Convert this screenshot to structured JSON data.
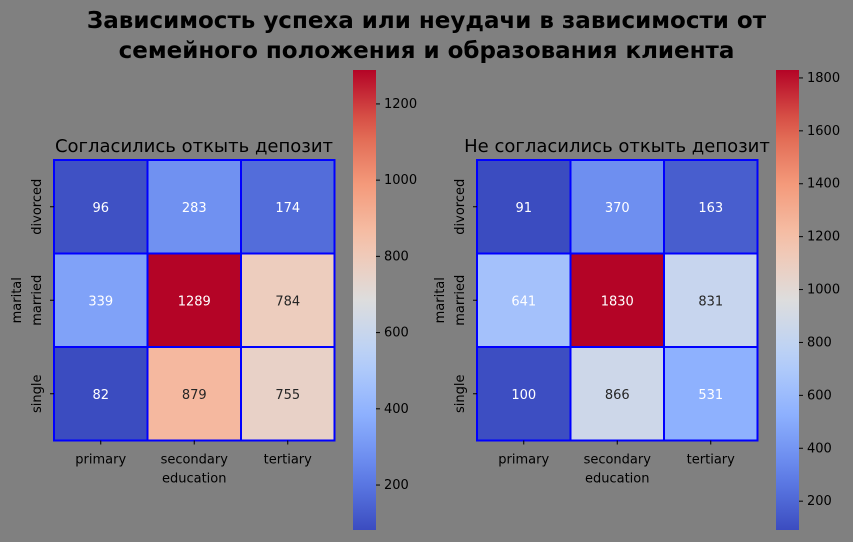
{
  "figure": {
    "suptitle_line1": "Зависимость успеха или неудачи в зависимости от",
    "suptitle_line2": "семейного положения и образования клиента"
  },
  "colors": {
    "background": "#808080",
    "cell_border": "#0000ff",
    "colormap": "coolwarm"
  },
  "chart_data": [
    {
      "type": "heatmap",
      "title": "Согласились откыть депозит",
      "xlabel": "education",
      "ylabel": "marital",
      "x_categories": [
        "primary",
        "secondary",
        "tertiary"
      ],
      "y_categories": [
        "divorced",
        "married",
        "single"
      ],
      "values": [
        [
          96,
          283,
          174
        ],
        [
          339,
          1289,
          784
        ],
        [
          82,
          879,
          755
        ]
      ],
      "colorbar_ticks": [
        200,
        400,
        600,
        800,
        1000,
        1200
      ],
      "vmin": 82,
      "vmax": 1289
    },
    {
      "type": "heatmap",
      "title": "Не согласились откыть депозит",
      "xlabel": "education",
      "ylabel": "marital",
      "x_categories": [
        "primary",
        "secondary",
        "tertiary"
      ],
      "y_categories": [
        "divorced",
        "married",
        "single"
      ],
      "values": [
        [
          91,
          370,
          163
        ],
        [
          641,
          1830,
          831
        ],
        [
          100,
          866,
          531
        ]
      ],
      "colorbar_ticks": [
        200,
        400,
        600,
        800,
        1000,
        1200,
        1400,
        1600,
        1800
      ],
      "vmin": 91,
      "vmax": 1830
    }
  ]
}
